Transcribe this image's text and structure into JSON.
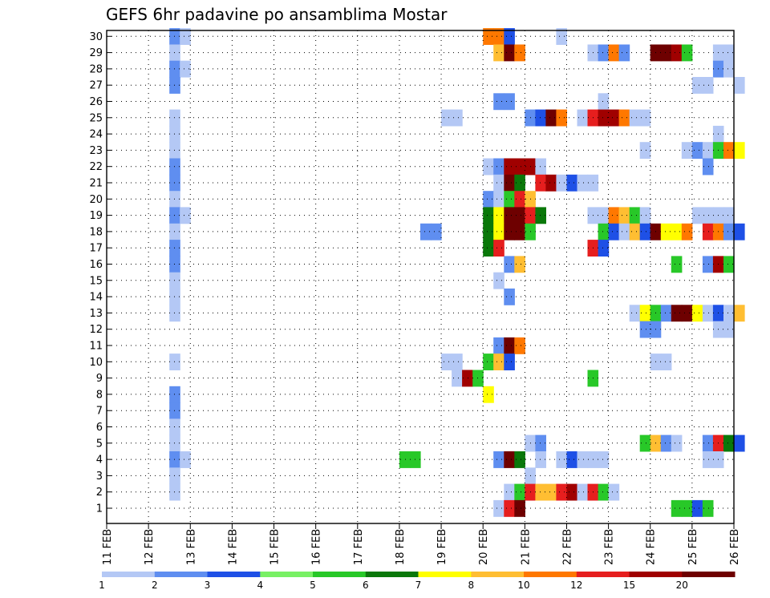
{
  "chart_data": {
    "type": "heatmap",
    "title": "GEFS 6hr padavine po ansamblima Mostar",
    "x_ticks": [
      "11 FEB",
      "12 FEB",
      "13 FEB",
      "14 FEB",
      "15 FEB",
      "16 FEB",
      "17 FEB",
      "18 FEB",
      "19 FEB",
      "20 FEB",
      "21 FEB",
      "22 FEB",
      "23 FEB",
      "24 FEB",
      "25 FEB",
      "26 FEB"
    ],
    "y_ticks": [
      1,
      2,
      3,
      4,
      5,
      6,
      7,
      8,
      9,
      10,
      11,
      12,
      13,
      14,
      15,
      16,
      17,
      18,
      19,
      20,
      21,
      22,
      23,
      24,
      25,
      26,
      27,
      28,
      29,
      30
    ],
    "grid": true,
    "legend_position": "bottom",
    "colorbar": {
      "labels": [
        "1",
        "2",
        "3",
        "4",
        "5",
        "6",
        "7",
        "8",
        "10",
        "12",
        "15",
        "20"
      ],
      "colors": [
        "#b4c8f5",
        "#5f8ef0",
        "#1e50e6",
        "#78f064",
        "#28c828",
        "#0a780a",
        "#ffff00",
        "#ffbe32",
        "#ff7800",
        "#e61e1e",
        "#a00000",
        "#6e0000"
      ]
    },
    "precip_cells": [
      [
        "12 FEB 12Z",
        30,
        2
      ],
      [
        "12 FEB 18Z",
        30,
        1
      ],
      [
        "20 FEB 00Z",
        30,
        11
      ],
      [
        "20 FEB 06Z",
        30,
        10
      ],
      [
        "20 FEB 12Z",
        30,
        3
      ],
      [
        "21 FEB 18Z",
        30,
        1
      ],
      [
        "12 FEB 12Z",
        29,
        1
      ],
      [
        "20 FEB 06Z",
        29,
        8
      ],
      [
        "20 FEB 12Z",
        29,
        20
      ],
      [
        "20 FEB 18Z",
        29,
        10
      ],
      [
        "22 FEB 12Z",
        29,
        1
      ],
      [
        "22 FEB 18Z",
        29,
        2
      ],
      [
        "23 FEB 00Z",
        29,
        10
      ],
      [
        "23 FEB 06Z",
        29,
        2
      ],
      [
        "24 FEB 00Z",
        29,
        20
      ],
      [
        "24 FEB 06Z",
        29,
        20
      ],
      [
        "24 FEB 12Z",
        29,
        15
      ],
      [
        "24 FEB 18Z",
        29,
        5
      ],
      [
        "25 FEB 12Z",
        29,
        1
      ],
      [
        "25 FEB 18Z",
        29,
        1
      ],
      [
        "12 FEB 12Z",
        28,
        2
      ],
      [
        "12 FEB 18Z",
        28,
        1
      ],
      [
        "25 FEB 12Z",
        28,
        2
      ],
      [
        "25 FEB 18Z",
        28,
        1
      ],
      [
        "12 FEB 12Z",
        27,
        2
      ],
      [
        "25 FEB 00Z",
        27,
        1
      ],
      [
        "25 FEB 06Z",
        27,
        1
      ],
      [
        "26 FEB 00Z",
        27,
        1
      ],
      [
        "20 FEB 06Z",
        26,
        2
      ],
      [
        "20 FEB 12Z",
        26,
        2
      ],
      [
        "22 FEB 18Z",
        26,
        1
      ],
      [
        "12 FEB 12Z",
        25,
        1
      ],
      [
        "19 FEB 00Z",
        25,
        1
      ],
      [
        "19 FEB 06Z",
        25,
        1
      ],
      [
        "21 FEB 00Z",
        25,
        2
      ],
      [
        "21 FEB 06Z",
        25,
        3
      ],
      [
        "21 FEB 12Z",
        25,
        20
      ],
      [
        "21 FEB 18Z",
        25,
        10
      ],
      [
        "22 FEB 06Z",
        25,
        1
      ],
      [
        "22 FEB 12Z",
        25,
        12
      ],
      [
        "22 FEB 18Z",
        25,
        15
      ],
      [
        "23 FEB 00Z",
        25,
        15
      ],
      [
        "23 FEB 06Z",
        25,
        10
      ],
      [
        "23 FEB 12Z",
        25,
        1
      ],
      [
        "23 FEB 18Z",
        25,
        1
      ],
      [
        "12 FEB 12Z",
        24,
        1
      ],
      [
        "25 FEB 12Z",
        24,
        1
      ],
      [
        "12 FEB 12Z",
        23,
        1
      ],
      [
        "23 FEB 18Z",
        23,
        1
      ],
      [
        "24 FEB 18Z",
        23,
        1
      ],
      [
        "25 FEB 00Z",
        23,
        2
      ],
      [
        "25 FEB 06Z",
        23,
        1
      ],
      [
        "25 FEB 12Z",
        23,
        5
      ],
      [
        "25 FEB 18Z",
        23,
        10
      ],
      [
        "26 FEB 00Z",
        23,
        7
      ],
      [
        "12 FEB 12Z",
        22,
        2
      ],
      [
        "20 FEB 00Z",
        22,
        1
      ],
      [
        "20 FEB 06Z",
        22,
        2
      ],
      [
        "20 FEB 12Z",
        22,
        15
      ],
      [
        "20 FEB 18Z",
        22,
        15
      ],
      [
        "21 FEB 00Z",
        22,
        15
      ],
      [
        "21 FEB 06Z",
        22,
        1
      ],
      [
        "25 FEB 06Z",
        22,
        2
      ],
      [
        "12 FEB 12Z",
        21,
        2
      ],
      [
        "20 FEB 06Z",
        21,
        1
      ],
      [
        "20 FEB 12Z",
        21,
        20
      ],
      [
        "20 FEB 18Z",
        21,
        6
      ],
      [
        "21 FEB 06Z",
        21,
        12
      ],
      [
        "21 FEB 12Z",
        21,
        15
      ],
      [
        "21 FEB 18Z",
        21,
        1
      ],
      [
        "22 FEB 00Z",
        21,
        3
      ],
      [
        "22 FEB 06Z",
        21,
        1
      ],
      [
        "22 FEB 12Z",
        21,
        1
      ],
      [
        "12 FEB 12Z",
        20,
        1
      ],
      [
        "20 FEB 00Z",
        20,
        2
      ],
      [
        "20 FEB 06Z",
        20,
        1
      ],
      [
        "20 FEB 12Z",
        20,
        5
      ],
      [
        "20 FEB 18Z",
        20,
        12
      ],
      [
        "21 FEB 00Z",
        20,
        8
      ],
      [
        "12 FEB 12Z",
        19,
        2
      ],
      [
        "12 FEB 18Z",
        19,
        1
      ],
      [
        "20 FEB 00Z",
        19,
        6
      ],
      [
        "20 FEB 06Z",
        19,
        7
      ],
      [
        "20 FEB 12Z",
        19,
        20
      ],
      [
        "20 FEB 18Z",
        19,
        20
      ],
      [
        "21 FEB 00Z",
        19,
        12
      ],
      [
        "21 FEB 06Z",
        19,
        6
      ],
      [
        "22 FEB 12Z",
        19,
        1
      ],
      [
        "22 FEB 18Z",
        19,
        1
      ],
      [
        "23 FEB 00Z",
        19,
        10
      ],
      [
        "23 FEB 06Z",
        19,
        8
      ],
      [
        "23 FEB 12Z",
        19,
        5
      ],
      [
        "23 FEB 18Z",
        19,
        1
      ],
      [
        "25 FEB 00Z",
        19,
        1
      ],
      [
        "25 FEB 06Z",
        19,
        1
      ],
      [
        "25 FEB 12Z",
        19,
        1
      ],
      [
        "25 FEB 18Z",
        19,
        1
      ],
      [
        "12 FEB 12Z",
        18,
        1
      ],
      [
        "18 FEB 12Z",
        18,
        2
      ],
      [
        "18 FEB 18Z",
        18,
        2
      ],
      [
        "20 FEB 00Z",
        18,
        6
      ],
      [
        "20 FEB 06Z",
        18,
        7
      ],
      [
        "20 FEB 12Z",
        18,
        20
      ],
      [
        "20 FEB 18Z",
        18,
        20
      ],
      [
        "21 FEB 00Z",
        18,
        5
      ],
      [
        "22 FEB 18Z",
        18,
        5
      ],
      [
        "23 FEB 00Z",
        18,
        3
      ],
      [
        "23 FEB 06Z",
        18,
        1
      ],
      [
        "23 FEB 12Z",
        18,
        8
      ],
      [
        "23 FEB 18Z",
        18,
        3
      ],
      [
        "24 FEB 00Z",
        18,
        20
      ],
      [
        "24 FEB 06Z",
        18,
        7
      ],
      [
        "24 FEB 12Z",
        18,
        7
      ],
      [
        "24 FEB 18Z",
        18,
        10
      ],
      [
        "25 FEB 06Z",
        18,
        12
      ],
      [
        "25 FEB 12Z",
        18,
        10
      ],
      [
        "25 FEB 18Z",
        18,
        2
      ],
      [
        "26 FEB 00Z",
        18,
        3
      ],
      [
        "12 FEB 12Z",
        17,
        2
      ],
      [
        "20 FEB 00Z",
        17,
        6
      ],
      [
        "20 FEB 06Z",
        17,
        12
      ],
      [
        "22 FEB 12Z",
        17,
        12
      ],
      [
        "22 FEB 18Z",
        17,
        3
      ],
      [
        "12 FEB 12Z",
        16,
        2
      ],
      [
        "20 FEB 12Z",
        16,
        2
      ],
      [
        "20 FEB 18Z",
        16,
        8
      ],
      [
        "24 FEB 12Z",
        16,
        5
      ],
      [
        "25 FEB 06Z",
        16,
        2
      ],
      [
        "25 FEB 12Z",
        16,
        15
      ],
      [
        "25 FEB 18Z",
        16,
        5
      ],
      [
        "12 FEB 12Z",
        15,
        1
      ],
      [
        "20 FEB 06Z",
        15,
        1
      ],
      [
        "12 FEB 12Z",
        14,
        1
      ],
      [
        "20 FEB 12Z",
        14,
        2
      ],
      [
        "12 FEB 12Z",
        13,
        1
      ],
      [
        "23 FEB 12Z",
        13,
        1
      ],
      [
        "23 FEB 18Z",
        13,
        7
      ],
      [
        "24 FEB 00Z",
        13,
        5
      ],
      [
        "24 FEB 06Z",
        13,
        2
      ],
      [
        "24 FEB 12Z",
        13,
        20
      ],
      [
        "24 FEB 18Z",
        13,
        20
      ],
      [
        "25 FEB 00Z",
        13,
        7
      ],
      [
        "25 FEB 06Z",
        13,
        1
      ],
      [
        "25 FEB 12Z",
        13,
        3
      ],
      [
        "25 FEB 18Z",
        13,
        1
      ],
      [
        "26 FEB 00Z",
        13,
        8
      ],
      [
        "23 FEB 18Z",
        12,
        2
      ],
      [
        "24 FEB 00Z",
        12,
        2
      ],
      [
        "25 FEB 12Z",
        12,
        1
      ],
      [
        "25 FEB 18Z",
        12,
        1
      ],
      [
        "20 FEB 06Z",
        11,
        2
      ],
      [
        "20 FEB 12Z",
        11,
        20
      ],
      [
        "20 FEB 18Z",
        11,
        10
      ],
      [
        "12 FEB 12Z",
        10,
        1
      ],
      [
        "19 FEB 00Z",
        10,
        1
      ],
      [
        "19 FEB 06Z",
        10,
        1
      ],
      [
        "20 FEB 00Z",
        10,
        5
      ],
      [
        "20 FEB 06Z",
        10,
        8
      ],
      [
        "20 FEB 12Z",
        10,
        3
      ],
      [
        "24 FEB 00Z",
        10,
        1
      ],
      [
        "24 FEB 06Z",
        10,
        1
      ],
      [
        "19 FEB 06Z",
        9,
        1
      ],
      [
        "19 FEB 12Z",
        9,
        15
      ],
      [
        "19 FEB 18Z",
        9,
        5
      ],
      [
        "22 FEB 12Z",
        9,
        5
      ],
      [
        "12 FEB 12Z",
        8,
        2
      ],
      [
        "20 FEB 00Z",
        8,
        7
      ],
      [
        "12 FEB 12Z",
        7,
        2
      ],
      [
        "12 FEB 12Z",
        6,
        1
      ],
      [
        "12 FEB 12Z",
        5,
        1
      ],
      [
        "21 FEB 00Z",
        5,
        1
      ],
      [
        "21 FEB 06Z",
        5,
        2
      ],
      [
        "23 FEB 18Z",
        5,
        5
      ],
      [
        "24 FEB 00Z",
        5,
        8
      ],
      [
        "24 FEB 06Z",
        5,
        2
      ],
      [
        "24 FEB 12Z",
        5,
        1
      ],
      [
        "25 FEB 06Z",
        5,
        2
      ],
      [
        "25 FEB 12Z",
        5,
        12
      ],
      [
        "25 FEB 18Z",
        5,
        6
      ],
      [
        "26 FEB 00Z",
        5,
        3
      ],
      [
        "12 FEB 12Z",
        4,
        2
      ],
      [
        "12 FEB 18Z",
        4,
        1
      ],
      [
        "18 FEB 00Z",
        4,
        5
      ],
      [
        "18 FEB 06Z",
        4,
        5
      ],
      [
        "20 FEB 06Z",
        4,
        2
      ],
      [
        "20 FEB 12Z",
        4,
        20
      ],
      [
        "20 FEB 18Z",
        4,
        6
      ],
      [
        "21 FEB 06Z",
        4,
        1
      ],
      [
        "21 FEB 18Z",
        4,
        1
      ],
      [
        "22 FEB 00Z",
        4,
        3
      ],
      [
        "22 FEB 06Z",
        4,
        1
      ],
      [
        "22 FEB 12Z",
        4,
        1
      ],
      [
        "22 FEB 18Z",
        4,
        1
      ],
      [
        "25 FEB 06Z",
        4,
        1
      ],
      [
        "25 FEB 12Z",
        4,
        1
      ],
      [
        "12 FEB 12Z",
        3,
        1
      ],
      [
        "21 FEB 00Z",
        3,
        1
      ],
      [
        "12 FEB 12Z",
        2,
        1
      ],
      [
        "20 FEB 12Z",
        2,
        1
      ],
      [
        "20 FEB 18Z",
        2,
        5
      ],
      [
        "21 FEB 00Z",
        2,
        12
      ],
      [
        "21 FEB 06Z",
        2,
        8
      ],
      [
        "21 FEB 12Z",
        2,
        8
      ],
      [
        "21 FEB 18Z",
        2,
        12
      ],
      [
        "22 FEB 00Z",
        2,
        15
      ],
      [
        "22 FEB 06Z",
        2,
        1
      ],
      [
        "22 FEB 12Z",
        2,
        12
      ],
      [
        "22 FEB 18Z",
        2,
        5
      ],
      [
        "23 FEB 00Z",
        2,
        1
      ],
      [
        "20 FEB 06Z",
        1,
        1
      ],
      [
        "20 FEB 12Z",
        1,
        12
      ],
      [
        "20 FEB 18Z",
        1,
        20
      ],
      [
        "24 FEB 12Z",
        1,
        5
      ],
      [
        "24 FEB 18Z",
        1,
        5
      ],
      [
        "25 FEB 00Z",
        1,
        3
      ],
      [
        "25 FEB 06Z",
        1,
        5
      ]
    ]
  }
}
